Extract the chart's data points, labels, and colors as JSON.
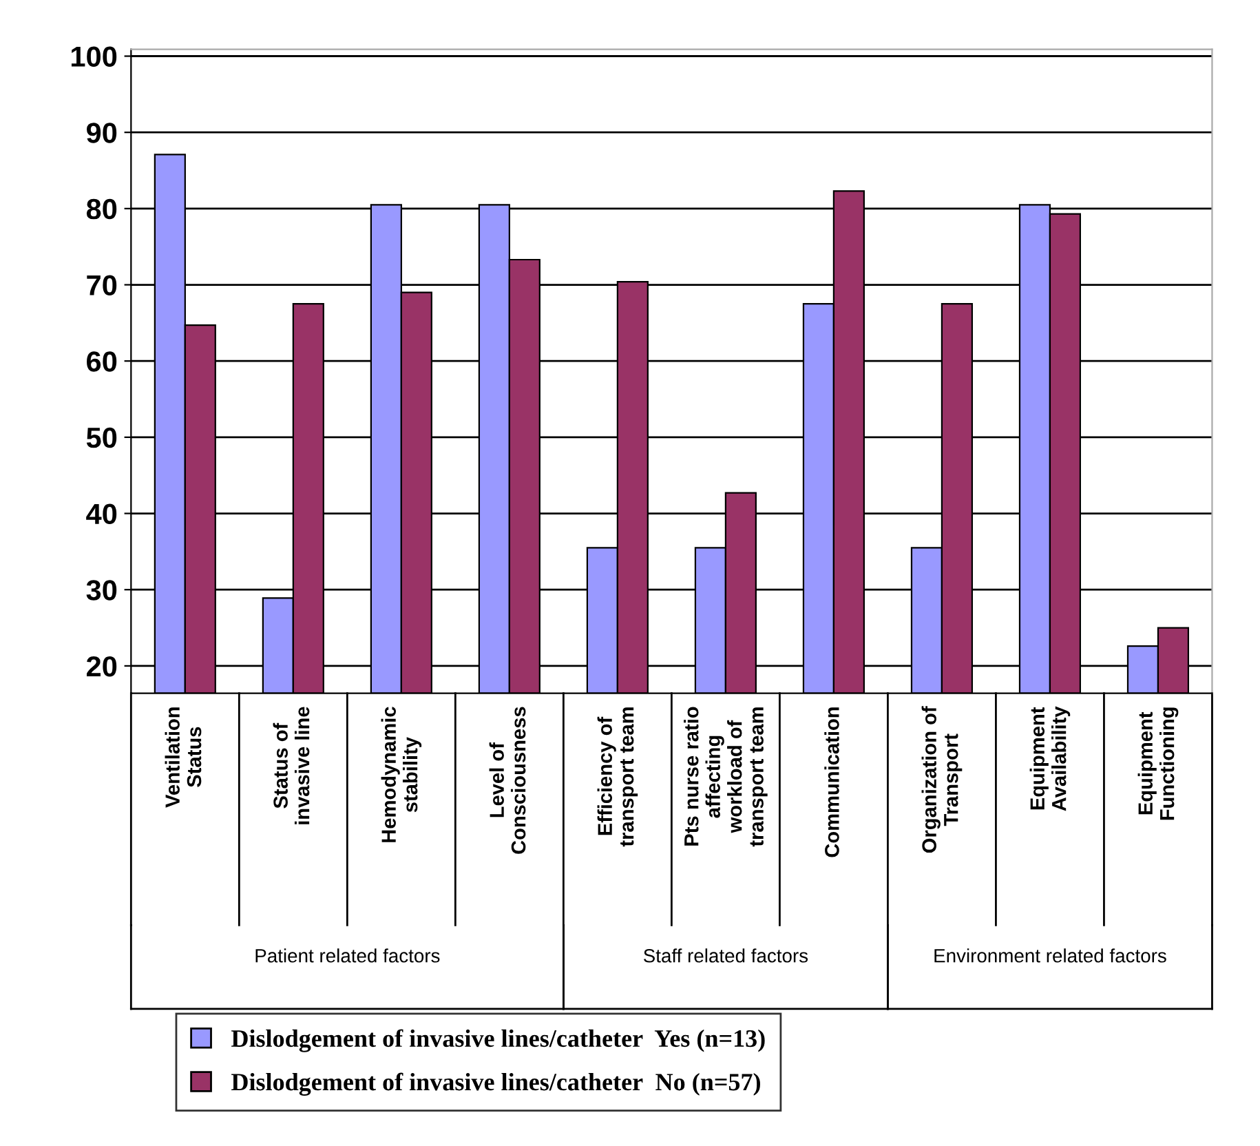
{
  "chart_data": {
    "type": "bar",
    "categories": [
      "Ventilation\nStatus",
      "Status of\ninvasive line",
      "Hemodynamic\nstability",
      "Level of\nConsciousness",
      "Efficiency of\ntransport team",
      "Pts nurse ratio\naffecting\nworkload of\ntransport team",
      "Communication",
      "Organization of\nTransport",
      "Equipment\nAvailability",
      "Equipment\nFunctioning"
    ],
    "series": [
      {
        "name": "Dislodgement of invasive lines/catheter  Yes (n=13)",
        "color": "#9999ff",
        "values": [
          87.1,
          28.9,
          80.5,
          80.5,
          35.5,
          35.5,
          67.5,
          35.5,
          80.5,
          22.6
        ]
      },
      {
        "name": "Dislodgement of invasive lines/catheter  No (n=57)",
        "color": "#993366",
        "values": [
          64.7,
          67.5,
          69.0,
          73.3,
          70.4,
          42.7,
          82.3,
          67.5,
          79.3,
          25.0
        ]
      }
    ],
    "ylim": [
      16.4,
      100.9
    ],
    "yticks": [
      20,
      30,
      40,
      50,
      60,
      70,
      80,
      90,
      100
    ],
    "grid": "y",
    "legend": "bottom",
    "annotations": [
      "Patient related factors",
      "Staff related factors",
      "Environment related factors"
    ]
  }
}
